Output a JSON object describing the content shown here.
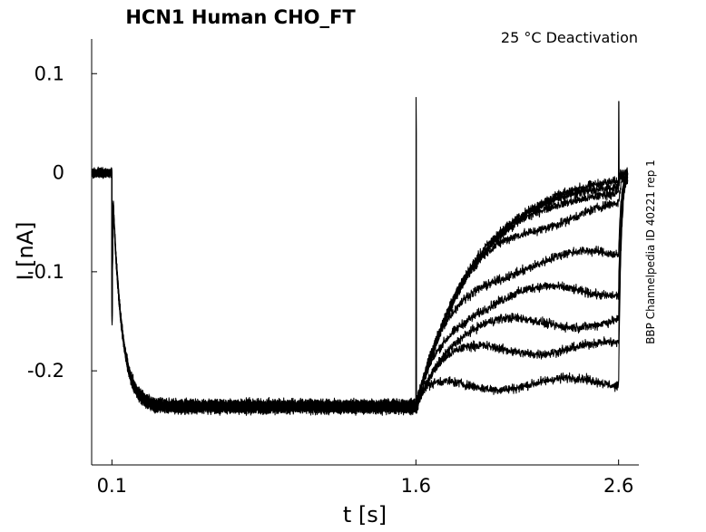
{
  "chart_data": {
    "type": "line",
    "title": "HCN1  Human  CHO_FT",
    "annotation": "25 °C  Deactivation",
    "side_label": "BBP Channelpedia ID 40221 rep 1",
    "xlabel": "t [s]",
    "ylabel": "I [nA]",
    "xlim": [
      0.0,
      2.7
    ],
    "ylim": [
      -0.295,
      0.135
    ],
    "x_ticks": [
      0.1,
      1.6,
      2.6
    ],
    "x_tick_labels": [
      "0.1",
      "1.6",
      "2.6"
    ],
    "y_ticks": [
      0.1,
      0,
      -0.1,
      -0.2
    ],
    "y_tick_labels": [
      "0.1",
      "0",
      "-0.1",
      "-0.2"
    ],
    "grid": false,
    "legend": "none",
    "protocol": {
      "holding_current": 0.0,
      "activation_start": 0.1,
      "activated_current": -0.236,
      "deactivation_start": 1.6,
      "deactivation_end": 2.6
    },
    "series": [
      {
        "steady_state_current": -0.001
      },
      {
        "steady_state_current": -0.006
      },
      {
        "steady_state_current": -0.013
      },
      {
        "steady_state_current": -0.032
      },
      {
        "steady_state_current": -0.082
      },
      {
        "steady_state_current": -0.118
      },
      {
        "steady_state_current": -0.15
      },
      {
        "steady_state_current": -0.177
      },
      {
        "steady_state_current": -0.213
      }
    ],
    "noise_amplitude": 0.0045,
    "line_color": "#000000"
  }
}
